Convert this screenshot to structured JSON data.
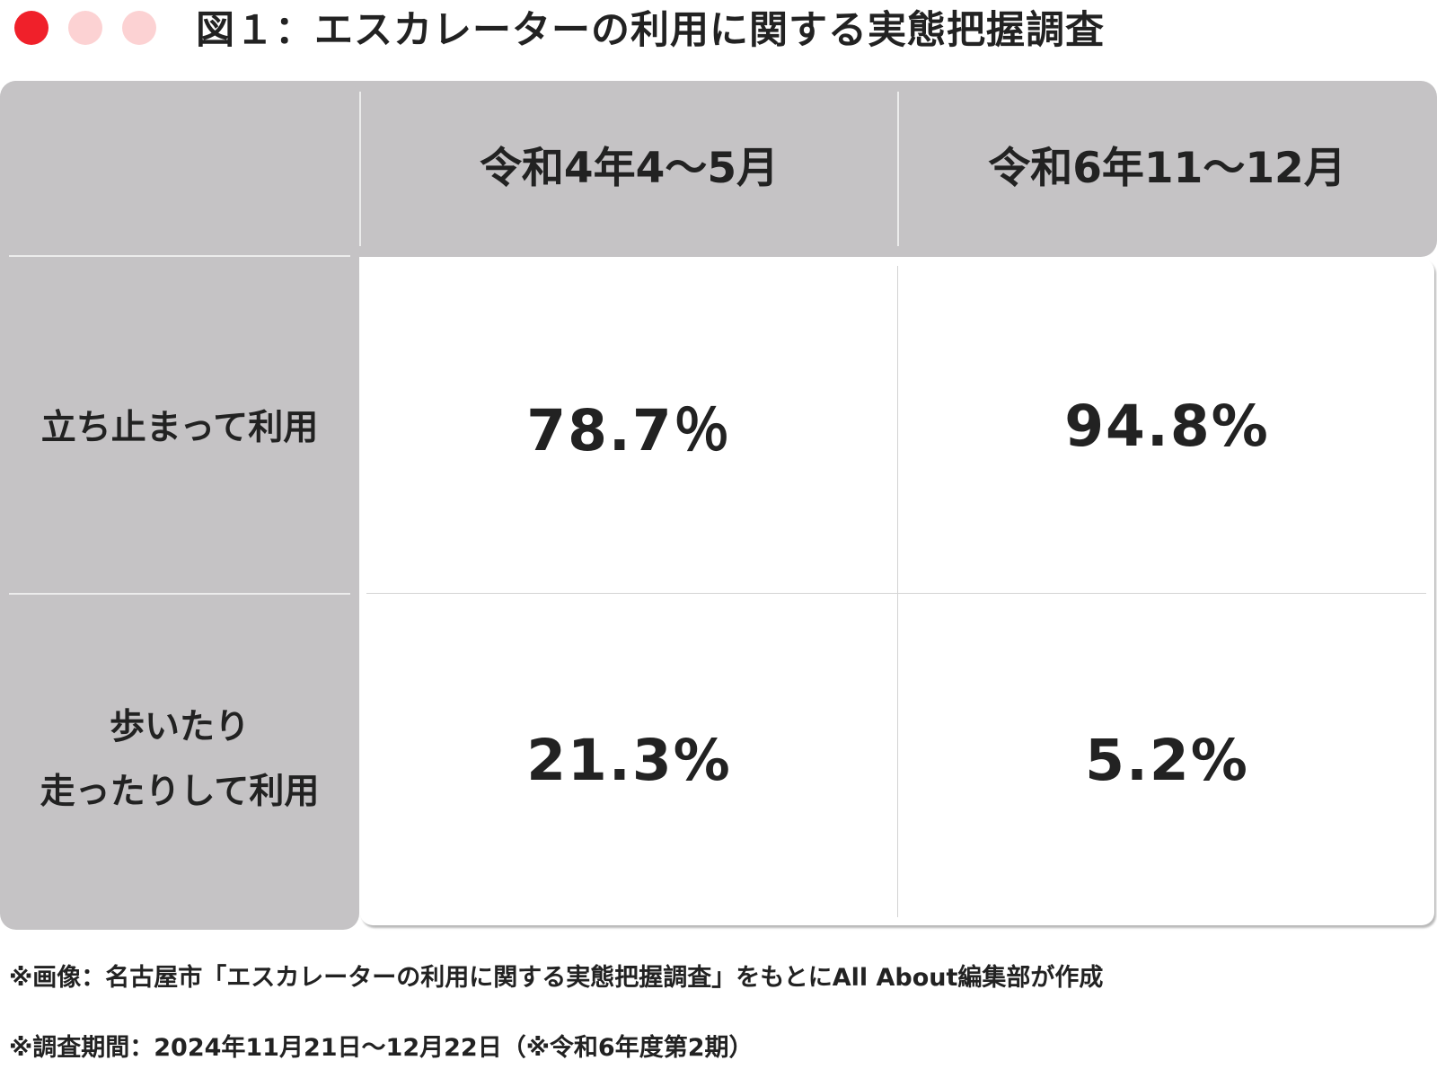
{
  "header": {
    "title": "図１：エスカレーターの利用に関する実態把握調査",
    "dot_colors": [
      "#f0202a",
      "#fcd2d3",
      "#fcd2d3"
    ]
  },
  "colors": {
    "header_fill": "#c5c3c5",
    "body_fill": "#ffffff",
    "text": "#222222"
  },
  "chart_data": {
    "type": "table",
    "title": "図１：エスカレーターの利用に関する実態把握調査",
    "columns": [
      "令和4年4〜5月",
      "令和6年11〜12月"
    ],
    "rows": [
      {
        "label_lines": [
          "立ち止まって利用"
        ],
        "values": [
          "78.7％",
          "94.8%"
        ]
      },
      {
        "label_lines": [
          "歩いたり",
          "走ったりして利用"
        ],
        "values": [
          "21.3%",
          "5.2%"
        ]
      }
    ]
  },
  "notes": [
    "※画像：名古屋市「エスカレーターの利用に関する実態把握調査」をもとにAll About編集部が作成",
    "※調査期間：2024年11月21日〜12月22日（※令和6年度第2期）"
  ]
}
